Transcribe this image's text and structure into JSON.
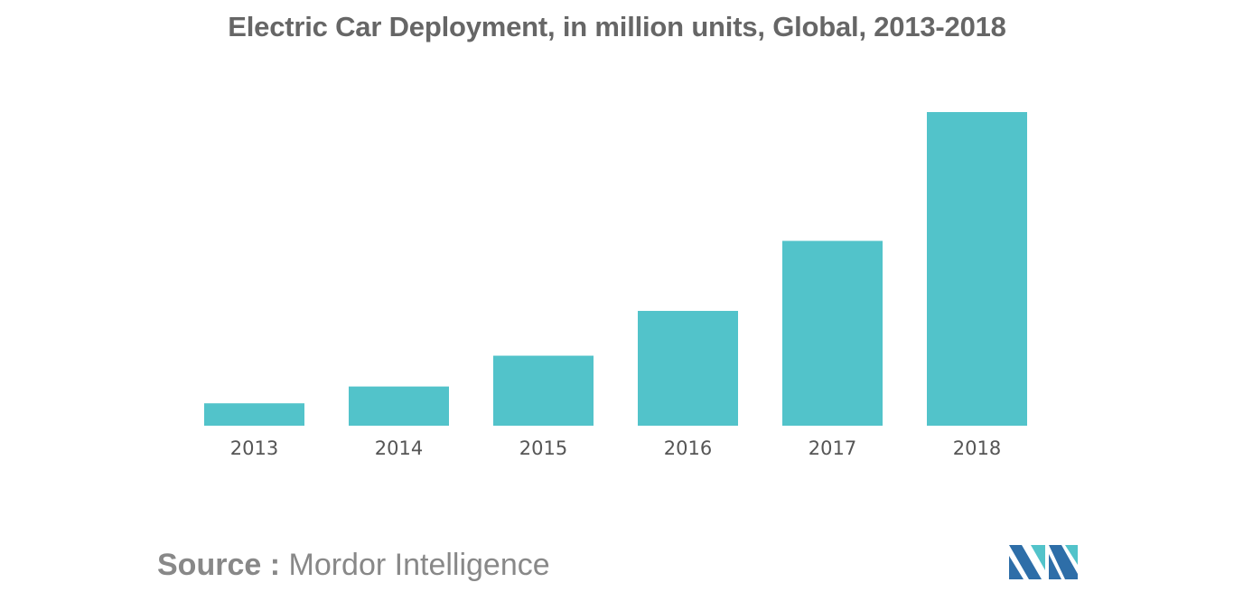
{
  "chart_data": {
    "type": "bar",
    "title": "Electric Car Deployment, in million units, Global, 2013-2018",
    "categories": [
      "2013",
      "2014",
      "2015",
      "2016",
      "2017",
      "2018"
    ],
    "values": [
      0.4,
      0.7,
      1.25,
      2.05,
      3.3,
      5.6
    ],
    "xlabel": "",
    "ylabel": "",
    "ylim": [
      0,
      5.6
    ],
    "grid": false,
    "bar_color": "#52C3CA"
  },
  "source": {
    "label": "Source :",
    "name": "Mordor Intelligence"
  },
  "logo": {
    "icon": "mordor-intelligence-logo-icon",
    "colors": [
      "#2E6EA8",
      "#52C3CA"
    ]
  }
}
